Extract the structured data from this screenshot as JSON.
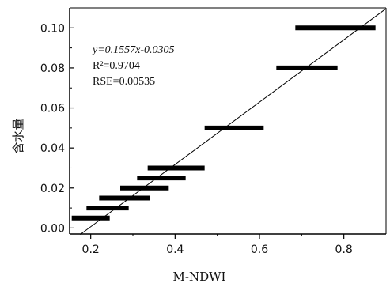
{
  "chart_data": {
    "type": "scatter",
    "xlabel": "M-NDWI",
    "ylabel": "含水量",
    "xlim": [
      0.15,
      0.9
    ],
    "ylim": [
      -0.003,
      0.11
    ],
    "x_ticks": [
      "0.2",
      "0.4",
      "0.6",
      "0.8"
    ],
    "x_tick_values": [
      0.2,
      0.4,
      0.6,
      0.8
    ],
    "y_ticks": [
      "0.00",
      "0.02",
      "0.04",
      "0.06",
      "0.08",
      "0.10"
    ],
    "y_tick_values": [
      0.0,
      0.02,
      0.04,
      0.06,
      0.08,
      0.1
    ],
    "ranges": [
      {
        "y": 0.005,
        "x_min": 0.155,
        "x_max": 0.245
      },
      {
        "y": 0.01,
        "x_min": 0.19,
        "x_max": 0.29
      },
      {
        "y": 0.015,
        "x_min": 0.22,
        "x_max": 0.34
      },
      {
        "y": 0.02,
        "x_min": 0.27,
        "x_max": 0.385
      },
      {
        "y": 0.025,
        "x_min": 0.31,
        "x_max": 0.425
      },
      {
        "y": 0.03,
        "x_min": 0.335,
        "x_max": 0.47
      },
      {
        "y": 0.05,
        "x_min": 0.47,
        "x_max": 0.61
      },
      {
        "y": 0.08,
        "x_min": 0.64,
        "x_max": 0.785
      },
      {
        "y": 0.1,
        "x_min": 0.685,
        "x_max": 0.875
      }
    ],
    "fit": {
      "slope": 0.1557,
      "intercept": -0.0305,
      "x_start": 0.175,
      "x_end": 0.9
    },
    "annotation": {
      "equation": "y=0.1557x-0.0305",
      "r2": "R²=0.9704",
      "rse": "RSE=0.00535"
    }
  }
}
